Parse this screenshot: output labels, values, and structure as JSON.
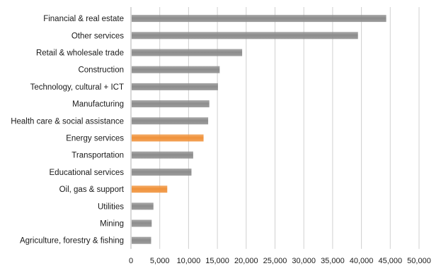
{
  "chart_data": {
    "type": "bar",
    "orientation": "horizontal",
    "categories": [
      "Financial & real estate",
      "Other services",
      "Retail & wholesale trade",
      "Construction",
      "Technology, cultural + ICT",
      "Manufacturing",
      "Health care & social assistance",
      "Energy services",
      "Transportation",
      "Educational services",
      "Oil, gas & support",
      "Utilities",
      "Mining",
      "Agriculture, forestry & fishing"
    ],
    "values": [
      44300,
      39400,
      19300,
      15400,
      15100,
      13600,
      13400,
      12600,
      10800,
      10500,
      6300,
      3900,
      3600,
      3500
    ],
    "bar_colors": [
      "#8c8c8c",
      "#8c8c8c",
      "#8c8c8c",
      "#8c8c8c",
      "#8c8c8c",
      "#8c8c8c",
      "#8c8c8c",
      "#f0923a",
      "#8c8c8c",
      "#8c8c8c",
      "#f0923a",
      "#8c8c8c",
      "#8c8c8c",
      "#8c8c8c"
    ],
    "xlim": [
      0,
      50000
    ],
    "xticks": [
      0,
      5000,
      10000,
      15000,
      20000,
      25000,
      30000,
      35000,
      40000,
      45000,
      50000
    ],
    "xtick_labels": [
      "0",
      "5,000",
      "10,000",
      "15,000",
      "20,000",
      "25,000",
      "30,000",
      "35,000",
      "40,000",
      "45,000",
      "50,000"
    ],
    "grid": "vertical",
    "legend": "none",
    "title": "",
    "xlabel": "",
    "ylabel": ""
  },
  "colors": {
    "default_bar": "#8c8c8c",
    "highlight_bar": "#f0923a",
    "gridline": "#d0d0d0",
    "axis": "#b0b0b0"
  }
}
